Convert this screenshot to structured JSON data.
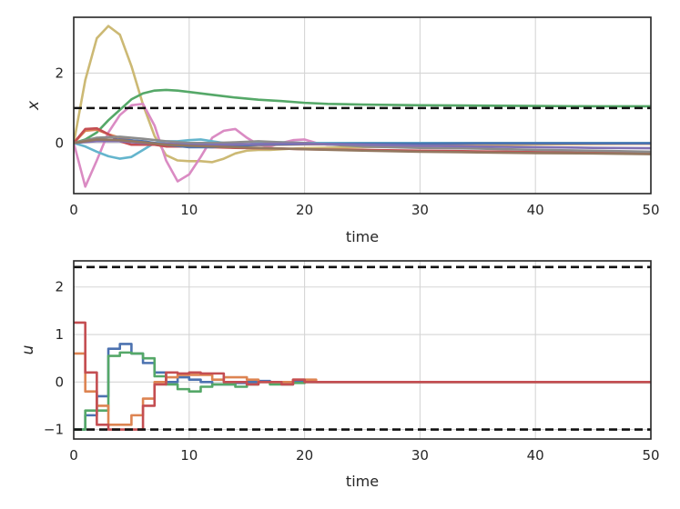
{
  "chart_data": [
    {
      "type": "line",
      "xlabel": "time",
      "ylabel": "x",
      "xlim": [
        0,
        50
      ],
      "ylim": [
        -1.45,
        3.6
      ],
      "xticks": [
        0,
        10,
        20,
        30,
        40,
        50
      ],
      "yticks": [
        0,
        2
      ],
      "grid": true,
      "legend": "none",
      "reference_lines": [
        {
          "y": 1.0,
          "style": "dashed",
          "color": "#111111"
        }
      ],
      "series": [
        {
          "color": "#ccb974",
          "x": [
            0,
            1,
            2,
            3,
            4,
            5,
            6,
            7,
            8,
            9,
            10,
            11,
            12,
            13,
            14,
            15,
            16,
            17,
            18,
            19,
            20,
            25,
            30,
            35,
            40,
            45,
            50
          ],
          "y": [
            0,
            1.8,
            3.0,
            3.35,
            3.1,
            2.2,
            1.1,
            0.2,
            -0.35,
            -0.5,
            -0.52,
            -0.52,
            -0.55,
            -0.45,
            -0.3,
            -0.22,
            -0.2,
            -0.2,
            -0.18,
            -0.16,
            -0.15,
            -0.12,
            -0.08,
            -0.06,
            -0.04,
            -0.03,
            -0.02
          ]
        },
        {
          "color": "#55a868",
          "x": [
            0,
            1,
            2,
            3,
            4,
            5,
            6,
            7,
            8,
            9,
            10,
            12,
            14,
            16,
            18,
            20,
            22,
            25,
            30,
            35,
            40,
            45,
            50
          ],
          "y": [
            0,
            0.1,
            0.3,
            0.65,
            0.95,
            1.25,
            1.42,
            1.5,
            1.52,
            1.5,
            1.46,
            1.38,
            1.3,
            1.24,
            1.2,
            1.15,
            1.12,
            1.1,
            1.08,
            1.07,
            1.06,
            1.05,
            1.05
          ]
        },
        {
          "color": "#da8bc3",
          "x": [
            0,
            1,
            2,
            3,
            4,
            5,
            6,
            7,
            8,
            9,
            10,
            11,
            12,
            13,
            14,
            15,
            16,
            17,
            18,
            19,
            20,
            21,
            22,
            25,
            30,
            50
          ],
          "y": [
            0,
            -1.25,
            -0.5,
            0.3,
            0.8,
            1.08,
            1.12,
            0.5,
            -0.5,
            -1.1,
            -0.9,
            -0.4,
            0.15,
            0.35,
            0.4,
            0.15,
            -0.05,
            -0.1,
            0.0,
            0.08,
            0.1,
            0.0,
            -0.05,
            0.0,
            0.0,
            0.0
          ]
        },
        {
          "color": "#64b5cd",
          "x": [
            0,
            1,
            2,
            3,
            4,
            5,
            6,
            7,
            8,
            9,
            10,
            11,
            12,
            13,
            14,
            15,
            16,
            18,
            20,
            25,
            30,
            50
          ],
          "y": [
            0,
            -0.1,
            -0.25,
            -0.38,
            -0.45,
            -0.4,
            -0.2,
            0.0,
            0.05,
            0.05,
            0.08,
            0.1,
            0.05,
            0.0,
            -0.05,
            -0.05,
            0.0,
            0.02,
            0.0,
            0.0,
            0.0,
            0.0
          ]
        },
        {
          "color": "#dd8452",
          "x": [
            0,
            1,
            2,
            3,
            4,
            5,
            6,
            7,
            8,
            9,
            10,
            12,
            14,
            16,
            18,
            20,
            25,
            30,
            35,
            40,
            45,
            50
          ],
          "y": [
            0,
            0.35,
            0.38,
            0.25,
            0.15,
            0.08,
            0.0,
            -0.05,
            -0.05,
            -0.05,
            -0.05,
            -0.08,
            -0.08,
            -0.06,
            -0.05,
            -0.04,
            -0.04,
            -0.03,
            -0.02,
            -0.02,
            -0.02,
            -0.02
          ]
        },
        {
          "color": "#c44e52",
          "x": [
            0,
            1,
            2,
            3,
            4,
            5,
            6,
            7,
            8,
            9,
            10,
            12,
            14,
            16,
            18,
            20,
            25,
            30,
            35,
            40,
            45,
            50
          ],
          "y": [
            0,
            0.4,
            0.42,
            0.25,
            0.05,
            -0.05,
            -0.05,
            -0.05,
            -0.1,
            -0.1,
            -0.1,
            -0.12,
            -0.14,
            -0.15,
            -0.16,
            -0.18,
            -0.2,
            -0.22,
            -0.24,
            -0.26,
            -0.28,
            -0.3
          ]
        },
        {
          "color": "#4c72b0",
          "x": [
            0,
            2,
            4,
            6,
            8,
            10,
            12,
            14,
            16,
            18,
            20,
            25,
            30,
            35,
            40,
            45,
            50
          ],
          "y": [
            0,
            0.08,
            0.1,
            0.05,
            -0.05,
            -0.12,
            -0.12,
            -0.08,
            -0.05,
            -0.04,
            -0.03,
            -0.02,
            -0.02,
            -0.01,
            -0.01,
            -0.01,
            -0.01
          ]
        },
        {
          "color": "#8c8c8c",
          "x": [
            0,
            2,
            4,
            6,
            8,
            10,
            12,
            14,
            16,
            18,
            20,
            25,
            30,
            35,
            40,
            45,
            50
          ],
          "y": [
            0,
            0.15,
            0.18,
            0.12,
            0.05,
            0.0,
            0.0,
            0.02,
            0.05,
            0.02,
            0.0,
            -0.1,
            -0.14,
            -0.16,
            -0.2,
            -0.22,
            -0.25
          ]
        },
        {
          "color": "#8172b3",
          "x": [
            0,
            2,
            4,
            6,
            8,
            10,
            12,
            14,
            16,
            18,
            20,
            25,
            30,
            35,
            40,
            45,
            50
          ],
          "y": [
            0,
            0.05,
            0.05,
            0.0,
            -0.02,
            -0.05,
            -0.05,
            -0.04,
            -0.03,
            -0.02,
            -0.02,
            -0.05,
            -0.08,
            -0.1,
            -0.12,
            -0.14,
            -0.15
          ]
        },
        {
          "color": "#937860",
          "x": [
            0,
            2,
            4,
            6,
            8,
            10,
            12,
            14,
            16,
            18,
            20,
            25,
            30,
            35,
            40,
            45,
            50
          ],
          "y": [
            0,
            0.1,
            0.08,
            0.02,
            -0.05,
            -0.08,
            -0.1,
            -0.12,
            -0.14,
            -0.16,
            -0.18,
            -0.22,
            -0.25,
            -0.27,
            -0.29,
            -0.3,
            -0.32
          ]
        }
      ]
    },
    {
      "type": "line",
      "step": true,
      "xlabel": "time",
      "ylabel": "u",
      "xlim": [
        0,
        50
      ],
      "ylim": [
        -1.2,
        2.55
      ],
      "xticks": [
        0,
        10,
        20,
        30,
        40,
        50
      ],
      "yticks": [
        -1,
        0,
        1,
        2
      ],
      "grid": true,
      "legend": "none",
      "reference_lines": [
        {
          "y": 2.42,
          "style": "dashed",
          "color": "#111111"
        },
        {
          "y": -1.0,
          "style": "dashed",
          "color": "#111111"
        }
      ],
      "series": [
        {
          "color": "#4c72b0",
          "x": [
            0,
            1,
            2,
            3,
            4,
            5,
            6,
            7,
            8,
            9,
            10,
            11,
            12,
            13,
            14,
            15,
            16,
            17,
            18,
            19,
            20,
            21,
            22,
            50
          ],
          "y": [
            -1.0,
            -0.7,
            -0.3,
            0.7,
            0.8,
            0.6,
            0.4,
            0.2,
            0.0,
            0.1,
            0.05,
            0.0,
            -0.05,
            -0.05,
            -0.02,
            0.0,
            0.02,
            0.0,
            -0.02,
            0.0,
            0.0,
            0.0,
            0.0,
            0.0
          ]
        },
        {
          "color": "#55a868",
          "x": [
            0,
            1,
            2,
            3,
            4,
            5,
            6,
            7,
            8,
            9,
            10,
            11,
            12,
            13,
            14,
            15,
            16,
            17,
            18,
            19,
            20,
            21,
            22,
            50
          ],
          "y": [
            -1.0,
            -0.6,
            -0.6,
            0.55,
            0.62,
            0.6,
            0.5,
            0.12,
            -0.05,
            -0.15,
            -0.2,
            -0.1,
            -0.05,
            -0.05,
            -0.1,
            -0.05,
            0.0,
            -0.05,
            -0.05,
            -0.02,
            0.0,
            0.0,
            0.0,
            0.0
          ]
        },
        {
          "color": "#dd8452",
          "x": [
            0,
            1,
            2,
            3,
            4,
            5,
            6,
            7,
            8,
            9,
            10,
            11,
            12,
            13,
            14,
            15,
            16,
            17,
            18,
            19,
            20,
            21,
            22,
            50
          ],
          "y": [
            0.6,
            -0.2,
            -0.5,
            -0.9,
            -0.9,
            -0.7,
            -0.35,
            0.0,
            0.1,
            0.15,
            0.15,
            0.15,
            0.05,
            0.1,
            0.1,
            0.05,
            0.0,
            0.0,
            0.0,
            0.05,
            0.05,
            0.0,
            0.0,
            0.0
          ]
        },
        {
          "color": "#c44e52",
          "x": [
            0,
            1,
            2,
            3,
            4,
            5,
            6,
            7,
            8,
            9,
            10,
            11,
            12,
            13,
            14,
            15,
            16,
            17,
            18,
            19,
            20,
            21,
            22,
            50
          ],
          "y": [
            1.25,
            0.2,
            -0.9,
            -1.0,
            -1.0,
            -1.0,
            -0.5,
            -0.05,
            0.2,
            0.18,
            0.2,
            0.18,
            0.18,
            0.0,
            0.0,
            -0.05,
            0.0,
            0.0,
            -0.05,
            0.05,
            0.0,
            0.0,
            0.0,
            0.0
          ]
        }
      ]
    }
  ]
}
